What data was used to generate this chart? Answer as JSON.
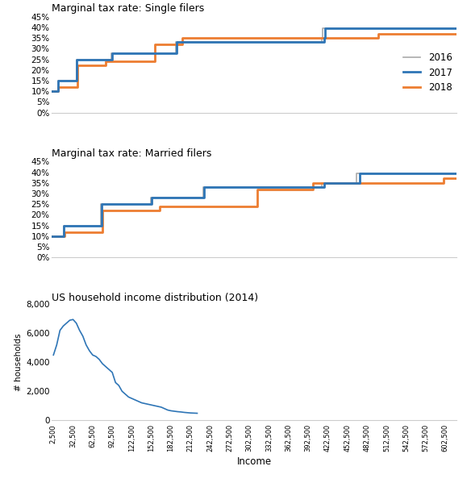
{
  "single_title": "Marginal tax rate: Single filers",
  "married_title": "Marginal tax rate: Married filers",
  "income_title": "US household income distribution (2014)",
  "income_ylabel": "# households",
  "income_xlabel": "Income",
  "color_2016": "#aaaaaa",
  "color_2017": "#2e75b6",
  "color_2018": "#ed7d31",
  "single_2017": {
    "brackets": [
      0,
      9325,
      37950,
      91900,
      191650,
      416700,
      418400,
      620000
    ],
    "rates": [
      0.1,
      0.15,
      0.25,
      0.28,
      0.33,
      0.35,
      0.396,
      0.396
    ]
  },
  "single_2016": {
    "brackets": [
      0,
      9275,
      37650,
      91150,
      190150,
      413350,
      415050,
      620000
    ],
    "rates": [
      0.1,
      0.15,
      0.25,
      0.28,
      0.33,
      0.35,
      0.396,
      0.396
    ]
  },
  "single_2018": {
    "brackets": [
      0,
      9525,
      38700,
      82500,
      157500,
      200000,
      500000,
      620000
    ],
    "rates": [
      0.1,
      0.12,
      0.22,
      0.24,
      0.32,
      0.35,
      0.37,
      0.37
    ]
  },
  "married_2017": {
    "brackets": [
      0,
      18650,
      75900,
      153100,
      233350,
      416700,
      470700,
      620000
    ],
    "rates": [
      0.1,
      0.15,
      0.25,
      0.28,
      0.33,
      0.35,
      0.396,
      0.396
    ]
  },
  "married_2016": {
    "brackets": [
      0,
      18550,
      75300,
      151900,
      231450,
      413350,
      466950,
      620000
    ],
    "rates": [
      0.1,
      0.15,
      0.25,
      0.28,
      0.33,
      0.35,
      0.396,
      0.396
    ]
  },
  "married_2018": {
    "brackets": [
      0,
      19050,
      77400,
      165000,
      315000,
      400000,
      600000,
      620000
    ],
    "rates": [
      0.1,
      0.12,
      0.22,
      0.24,
      0.32,
      0.35,
      0.37,
      0.37
    ]
  },
  "income_x": [
    2500,
    7500,
    12500,
    17500,
    22500,
    27500,
    32500,
    37500,
    42500,
    47500,
    52500,
    57500,
    62500,
    67500,
    72500,
    77500,
    82500,
    87500,
    92500,
    97500,
    102500,
    107500,
    112500,
    117500,
    122500,
    127500,
    132500,
    137500,
    142500,
    147500,
    152500,
    157500,
    162500,
    167500,
    172500,
    177500,
    182500,
    187500,
    192500,
    197500,
    202500,
    207500,
    212500,
    217500,
    222500
  ],
  "income_y": [
    4500,
    5200,
    6200,
    6500,
    6700,
    6900,
    6950,
    6700,
    6200,
    5800,
    5200,
    4800,
    4500,
    4400,
    4200,
    3900,
    3700,
    3500,
    3300,
    2600,
    2400,
    2000,
    1800,
    1600,
    1500,
    1400,
    1300,
    1200,
    1150,
    1100,
    1050,
    1000,
    950,
    900,
    800,
    700,
    650,
    620,
    590,
    570,
    540,
    520,
    500,
    490,
    480
  ],
  "tax_ylim": [
    0,
    0.46
  ],
  "tax_yticks": [
    0,
    0.05,
    0.1,
    0.15,
    0.2,
    0.25,
    0.3,
    0.35,
    0.4,
    0.45
  ],
  "income_ylim": [
    0,
    8000
  ],
  "income_yticks": [
    0,
    2000,
    4000,
    6000,
    8000
  ],
  "xmax": 620000,
  "xtick_start": 2500,
  "xtick_step": 30000
}
